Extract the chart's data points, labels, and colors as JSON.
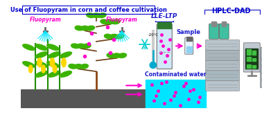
{
  "title": "Use of Fluopyram in corn and coffee cultivation",
  "fluopyram_label": "Fluopyram",
  "lle_ltp_label": "LLE-LTP",
  "hplc_dad_label": "HPLC-DAD",
  "sample_label": "Sample",
  "contaminated_water_label": "Contaminated water",
  "temp_label": "-20°C",
  "bg_color": "#ffffff",
  "ground_color": "#555555",
  "water_color": "#00e5ff",
  "leaf_green": "#3cb300",
  "stem_brown": "#8B4513",
  "spray_cyan": "#00e5ff",
  "fluopyram_pink": "#ff00cc",
  "arrow_pink": "#ff00cc",
  "lle_tube_top": "#2d7a2d",
  "hplc_bottle_green": "#40c0a0",
  "computer_green": "#40c040",
  "bracket_blue": "#2222cc",
  "text_blue": "#1a1acc",
  "text_blue2": "#0000cd",
  "label_pink": "#ff00cc",
  "snowflake_cyan": "#00cccc",
  "fig_width": 3.78,
  "fig_height": 1.63
}
